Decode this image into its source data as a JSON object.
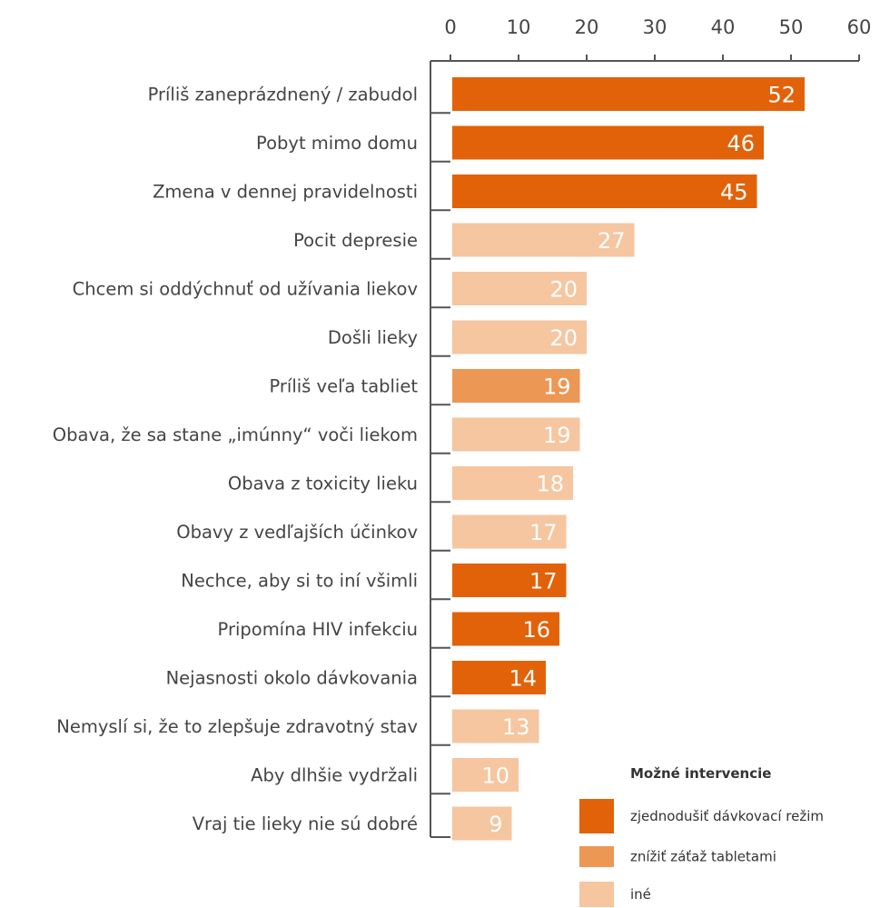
{
  "chart_data": {
    "type": "bar",
    "orientation": "horizontal",
    "categories": [
      "Príliš zaneprázdnený / zabudol",
      "Pobyt mimo domu",
      "Zmena v dennej pravidelnosti",
      "Pocit depresie",
      "Chcem si oddýchnuť od užívania liekov",
      "Došli lieky",
      "Príliš veľa tabliet",
      "Obava, že sa stane „imúnny“ voči liekom",
      "Obava z toxicity lieku",
      "Obavy z vedľajších účinkov",
      "Nechce, aby si to iní všimli",
      "Pripomína HIV infekciu",
      "Nejasnosti okolo dávkovania",
      "Nemyslí si, že to zlepšuje zdravotný stav",
      "Aby dlhšie vydržali",
      "Vraj tie lieky nie sú dobré"
    ],
    "values": [
      52,
      46,
      45,
      27,
      20,
      20,
      19,
      19,
      18,
      17,
      17,
      16,
      14,
      13,
      10,
      9
    ],
    "groups": [
      0,
      0,
      0,
      2,
      2,
      2,
      1,
      2,
      2,
      2,
      0,
      0,
      0,
      2,
      2,
      2
    ],
    "value_labels": [
      "52",
      "46",
      "45",
      "27",
      "20",
      "20",
      "19",
      "19",
      "18",
      "17",
      "17",
      "16",
      "14",
      "13",
      "10",
      "9"
    ],
    "xlim": [
      0,
      60
    ],
    "xticks": [
      0,
      10,
      20,
      30,
      40,
      50,
      60
    ],
    "xtick_labels": [
      "0",
      "10",
      "20",
      "30",
      "40",
      "50",
      "60"
    ],
    "axis_position": "top",
    "grid": false,
    "legend": {
      "title": "Možné intervencie",
      "position": "bottom-right",
      "entries": [
        {
          "label": "zjednodušiť dávkovací režim",
          "color": "#e2620a"
        },
        {
          "label": "znížiť záťaž tabletami",
          "color": "#ed9755"
        },
        {
          "label": "iné",
          "color": "#f5c6a0"
        }
      ]
    }
  }
}
